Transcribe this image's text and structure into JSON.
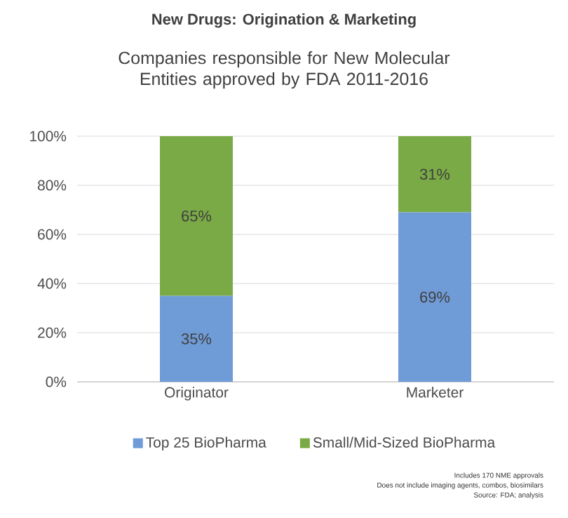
{
  "chart_data": {
    "type": "bar",
    "stacked": true,
    "title": "New Drugs: Origination & Marketing",
    "subtitle": "Companies responsible for New Molecular Entities approved by FDA 2011-2016",
    "categories": [
      "Originator",
      "Marketer"
    ],
    "series": [
      {
        "name": "Top 25 BioPharma",
        "color": "#6f9bd6",
        "values": [
          35,
          69
        ],
        "value_labels": [
          "35%",
          "69%"
        ]
      },
      {
        "name": "Small/Mid-Sized BioPharma",
        "color": "#7aaa45",
        "values": [
          65,
          31
        ],
        "value_labels": [
          "65%",
          "31%"
        ]
      }
    ],
    "ylim": [
      0,
      100
    ],
    "yticks": [
      {
        "value": 0,
        "label": "0%"
      },
      {
        "value": 20,
        "label": "20%"
      },
      {
        "value": 40,
        "label": "40%"
      },
      {
        "value": 60,
        "label": "60%"
      },
      {
        "value": 80,
        "label": "80%"
      },
      {
        "value": 100,
        "label": "100%"
      }
    ],
    "grid": "y",
    "legend": "bottom",
    "annotations": [
      "Includes 170 NME approvals",
      "Does not include imaging agents, combos, biosimilars",
      "Source: FDA; analysis"
    ]
  }
}
